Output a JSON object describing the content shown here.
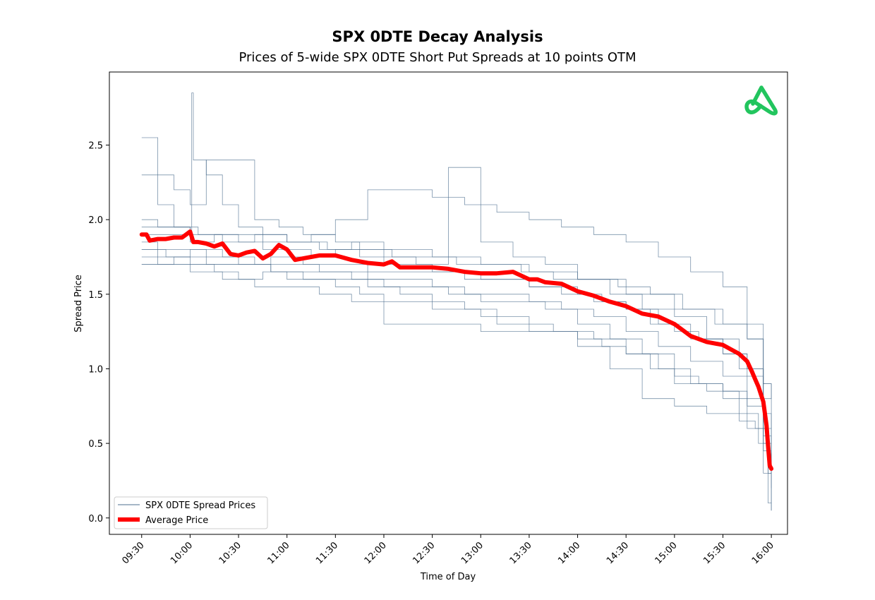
{
  "chart_data": {
    "type": "line",
    "title": "SPX 0DTE Decay Analysis",
    "subtitle": "Prices of 5-wide SPX 0DTE Short Put Spreads at 10 points OTM",
    "xlabel": "Time of Day",
    "ylabel": "Spread Price",
    "x_ticks": [
      "09:30",
      "10:00",
      "10:30",
      "11:00",
      "11:30",
      "12:00",
      "12:30",
      "13:00",
      "13:30",
      "14:00",
      "14:30",
      "15:00",
      "15:30",
      "16:00"
    ],
    "y_ticks": [
      0.0,
      0.5,
      1.0,
      1.5,
      2.0,
      2.5
    ],
    "y_tick_labels": [
      "0.0",
      "0.5",
      "1.0",
      "1.5",
      "2.0",
      "2.5"
    ],
    "ylim": [
      -0.11,
      2.99
    ],
    "xlim": [
      "09:10",
      "16:10"
    ],
    "legend": {
      "placement": "lower-left",
      "entries": [
        {
          "label": "SPX 0DTE Spread Prices",
          "color": "#4e6f8f"
        },
        {
          "label": "Average Price",
          "color": "#ff0000"
        }
      ]
    },
    "average_series": {
      "name": "Average Price",
      "color": "#ff0000",
      "x": [
        "09:30",
        "09:33",
        "09:35",
        "09:40",
        "09:45",
        "09:50",
        "09:55",
        "10:00",
        "10:02",
        "10:05",
        "10:10",
        "10:15",
        "10:20",
        "10:25",
        "10:30",
        "10:35",
        "10:40",
        "10:45",
        "10:50",
        "10:55",
        "11:00",
        "11:05",
        "11:10",
        "11:15",
        "11:20",
        "11:30",
        "11:40",
        "11:50",
        "12:00",
        "12:05",
        "12:10",
        "12:20",
        "12:30",
        "12:40",
        "12:50",
        "13:00",
        "13:10",
        "13:20",
        "13:30",
        "13:35",
        "13:40",
        "13:50",
        "14:00",
        "14:10",
        "14:20",
        "14:30",
        "14:40",
        "14:50",
        "15:00",
        "15:05",
        "15:10",
        "15:20",
        "15:30",
        "15:35",
        "15:40",
        "15:45",
        "15:48",
        "15:50",
        "15:52",
        "15:55",
        "15:57",
        "15:58",
        "15:59",
        "16:00"
      ],
      "values": [
        1.9,
        1.9,
        1.86,
        1.87,
        1.87,
        1.88,
        1.88,
        1.92,
        1.85,
        1.85,
        1.84,
        1.82,
        1.84,
        1.77,
        1.76,
        1.78,
        1.79,
        1.74,
        1.77,
        1.83,
        1.8,
        1.73,
        1.74,
        1.75,
        1.76,
        1.76,
        1.73,
        1.71,
        1.7,
        1.72,
        1.68,
        1.68,
        1.68,
        1.67,
        1.65,
        1.64,
        1.64,
        1.65,
        1.6,
        1.6,
        1.58,
        1.57,
        1.52,
        1.49,
        1.45,
        1.42,
        1.37,
        1.35,
        1.3,
        1.26,
        1.22,
        1.18,
        1.16,
        1.13,
        1.1,
        1.05,
        0.98,
        0.93,
        0.88,
        0.78,
        0.62,
        0.48,
        0.35,
        0.33
      ]
    },
    "series_color": "#4e6f8f",
    "series": [
      {
        "x": [
          "09:30",
          "09:33",
          "09:40",
          "09:50",
          "10:00",
          "10:01",
          "10:02",
          "10:10",
          "10:20",
          "10:30",
          "10:45",
          "11:00",
          "11:15",
          "11:30",
          "11:45",
          "12:00",
          "12:30",
          "13:00",
          "13:30",
          "14:00",
          "14:30",
          "15:00",
          "15:30",
          "15:45",
          "15:55",
          "16:00"
        ],
        "values": [
          2.55,
          2.55,
          2.1,
          1.95,
          1.9,
          2.85,
          2.4,
          2.3,
          2.1,
          1.95,
          1.9,
          1.85,
          1.9,
          1.85,
          1.8,
          1.8,
          1.75,
          1.7,
          1.65,
          1.6,
          1.5,
          1.4,
          1.3,
          1.2,
          0.8,
          0.8
        ]
      },
      {
        "x": [
          "09:30",
          "09:40",
          "09:50",
          "10:00",
          "10:10",
          "10:25",
          "10:40",
          "10:55",
          "11:10",
          "11:30",
          "11:50",
          "12:10",
          "12:30",
          "12:50",
          "13:10",
          "13:30",
          "13:50",
          "14:10",
          "14:30",
          "14:50",
          "15:10",
          "15:30",
          "15:45",
          "15:55",
          "16:00"
        ],
        "values": [
          2.3,
          2.3,
          2.2,
          2.1,
          2.4,
          2.4,
          2.0,
          1.95,
          1.9,
          2.0,
          2.2,
          2.2,
          2.15,
          2.1,
          2.05,
          2.0,
          1.95,
          1.9,
          1.85,
          1.75,
          1.65,
          1.55,
          1.3,
          0.9,
          0.6
        ]
      },
      {
        "x": [
          "09:30",
          "09:40",
          "10:00",
          "10:20",
          "10:40",
          "11:00",
          "11:20",
          "11:40",
          "12:00",
          "12:20",
          "12:40",
          "13:00",
          "13:20",
          "13:40",
          "14:00",
          "14:20",
          "14:40",
          "15:00",
          "15:20",
          "15:40",
          "15:55",
          "16:00"
        ],
        "values": [
          2.0,
          1.95,
          1.9,
          1.85,
          1.9,
          1.85,
          1.8,
          1.85,
          1.75,
          1.7,
          2.35,
          1.85,
          1.75,
          1.7,
          1.6,
          1.5,
          1.4,
          1.35,
          1.2,
          1.0,
          0.5,
          0.3
        ]
      },
      {
        "x": [
          "09:30",
          "09:45",
          "10:00",
          "10:15",
          "10:30",
          "10:45",
          "11:00",
          "11:15",
          "11:30",
          "11:45",
          "12:00",
          "12:15",
          "12:30",
          "12:45",
          "13:00",
          "13:15",
          "13:30",
          "13:45",
          "14:00",
          "14:15",
          "14:30",
          "14:45",
          "15:00",
          "15:15",
          "15:30",
          "15:45",
          "15:55",
          "16:00"
        ],
        "values": [
          1.9,
          1.9,
          1.85,
          1.9,
          1.85,
          1.8,
          1.8,
          1.75,
          1.8,
          1.75,
          1.7,
          1.7,
          1.65,
          1.65,
          1.6,
          1.6,
          1.55,
          1.55,
          1.5,
          1.45,
          1.4,
          1.3,
          1.25,
          1.2,
          1.1,
          1.0,
          0.7,
          0.4
        ]
      },
      {
        "x": [
          "09:30",
          "09:50",
          "10:10",
          "10:30",
          "10:50",
          "11:10",
          "11:30",
          "11:50",
          "12:10",
          "12:30",
          "12:50",
          "13:10",
          "13:30",
          "13:50",
          "14:10",
          "14:30",
          "14:50",
          "15:10",
          "15:30",
          "15:45",
          "15:55",
          "16:00"
        ],
        "values": [
          1.8,
          1.8,
          1.75,
          1.7,
          1.75,
          1.7,
          1.7,
          1.65,
          1.65,
          1.65,
          1.6,
          1.6,
          1.55,
          1.5,
          1.45,
          1.4,
          1.3,
          1.2,
          1.1,
          0.95,
          0.6,
          0.3
        ]
      },
      {
        "x": [
          "09:30",
          "09:45",
          "10:00",
          "10:20",
          "10:40",
          "11:00",
          "11:20",
          "11:40",
          "12:00",
          "12:20",
          "12:40",
          "13:00",
          "13:20",
          "13:40",
          "14:00",
          "14:20",
          "14:40",
          "15:00",
          "15:20",
          "15:40",
          "15:52",
          "15:58",
          "16:00"
        ],
        "values": [
          1.75,
          1.75,
          1.8,
          1.75,
          1.7,
          1.7,
          1.65,
          1.6,
          1.55,
          1.55,
          1.5,
          1.45,
          1.45,
          1.4,
          1.3,
          1.2,
          1.1,
          0.9,
          0.85,
          0.7,
          0.5,
          0.1,
          0.05
        ]
      },
      {
        "x": [
          "09:30",
          "09:50",
          "10:10",
          "10:30",
          "10:50",
          "11:10",
          "11:30",
          "11:50",
          "12:10",
          "12:30",
          "12:50",
          "13:10",
          "13:30",
          "13:50",
          "14:10",
          "14:30",
          "14:50",
          "15:10",
          "15:30",
          "15:45",
          "15:55",
          "16:00"
        ],
        "values": [
          1.7,
          1.7,
          1.7,
          1.7,
          1.65,
          1.65,
          1.65,
          1.6,
          1.6,
          1.55,
          1.5,
          1.5,
          1.45,
          1.4,
          1.35,
          1.25,
          1.15,
          1.05,
          0.95,
          0.8,
          0.45,
          0.1
        ]
      },
      {
        "x": [
          "09:30",
          "09:40",
          "10:00",
          "10:20",
          "10:40",
          "11:00",
          "11:20",
          "11:40",
          "12:00",
          "12:20",
          "12:40",
          "13:00",
          "13:20",
          "13:40",
          "14:00",
          "14:20",
          "14:40",
          "15:00",
          "15:20",
          "15:40",
          "15:50",
          "15:58",
          "16:00"
        ],
        "values": [
          1.85,
          1.7,
          1.65,
          1.6,
          1.55,
          1.55,
          1.5,
          1.45,
          1.3,
          1.3,
          1.3,
          1.25,
          1.25,
          1.25,
          1.15,
          1.0,
          0.8,
          0.75,
          0.7,
          0.65,
          0.6,
          0.3,
          0.05
        ]
      },
      {
        "x": [
          "09:30",
          "09:45",
          "10:05",
          "10:25",
          "10:45",
          "11:05",
          "11:25",
          "11:45",
          "12:05",
          "12:25",
          "12:45",
          "13:05",
          "13:25",
          "13:45",
          "14:05",
          "14:25",
          "14:45",
          "15:05",
          "15:25",
          "15:45",
          "15:55",
          "16:00"
        ],
        "values": [
          1.95,
          1.95,
          1.9,
          1.9,
          1.85,
          1.85,
          1.8,
          1.8,
          1.75,
          1.75,
          1.7,
          1.7,
          1.65,
          1.6,
          1.6,
          1.55,
          1.5,
          1.4,
          1.3,
          1.2,
          0.9,
          0.8
        ]
      },
      {
        "x": [
          "09:30",
          "09:50",
          "10:10",
          "10:30",
          "10:50",
          "11:10",
          "11:30",
          "11:50",
          "12:10",
          "12:30",
          "12:50",
          "13:10",
          "13:30",
          "13:50",
          "14:10",
          "14:30",
          "14:50",
          "15:10",
          "15:30",
          "15:45",
          "15:55",
          "16:00"
        ],
        "values": [
          1.7,
          1.75,
          1.7,
          1.7,
          1.65,
          1.6,
          1.6,
          1.55,
          1.5,
          1.45,
          1.4,
          1.3,
          1.25,
          1.25,
          1.2,
          1.1,
          1.0,
          0.9,
          0.8,
          0.6,
          0.3,
          0.2
        ]
      },
      {
        "x": [
          "09:30",
          "09:45",
          "10:00",
          "10:15",
          "10:30",
          "10:45",
          "11:00",
          "11:15",
          "11:30",
          "11:45",
          "12:00",
          "12:15",
          "12:30",
          "12:45",
          "13:00",
          "13:15",
          "13:30",
          "13:45",
          "14:00",
          "14:15",
          "14:30",
          "14:45",
          "15:00",
          "15:15",
          "15:30",
          "15:45",
          "15:55",
          "16:00"
        ],
        "values": [
          1.8,
          1.75,
          1.7,
          1.65,
          1.6,
          1.65,
          1.6,
          1.6,
          1.55,
          1.5,
          1.45,
          1.45,
          1.4,
          1.4,
          1.35,
          1.35,
          1.3,
          1.25,
          1.2,
          1.15,
          1.1,
          1.0,
          0.95,
          0.9,
          0.85,
          0.75,
          0.55,
          0.35
        ]
      }
    ]
  }
}
